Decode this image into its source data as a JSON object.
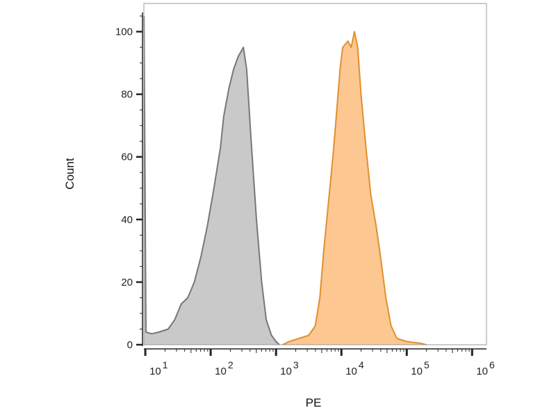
{
  "chart_data": {
    "type": "area",
    "title": "",
    "xlabel": "PE",
    "ylabel": "Count",
    "x_scale": "log",
    "xlim": [
      9.5,
      1660000
    ],
    "ylim": [
      0,
      109
    ],
    "grid": false,
    "x_ticks": [
      {
        "base": "10",
        "exp": "1",
        "value": 10
      },
      {
        "base": "10",
        "exp": "2",
        "value": 100
      },
      {
        "base": "10",
        "exp": "3",
        "value": 1000
      },
      {
        "base": "10",
        "exp": "4",
        "value": 10000
      },
      {
        "base": "10",
        "exp": "5",
        "value": 100000
      },
      {
        "base": "10",
        "exp": "6",
        "value": 1000000
      }
    ],
    "y_ticks": [
      {
        "label": "0",
        "value": 0
      },
      {
        "label": "20",
        "value": 20
      },
      {
        "label": "40",
        "value": 40
      },
      {
        "label": "60",
        "value": 60
      },
      {
        "label": "80",
        "value": 80
      },
      {
        "label": "100",
        "value": 100
      }
    ],
    "series": [
      {
        "color_fill": "#c9c9c9",
        "color_line": "#777777",
        "points_log10x_y": [
          [
            0.98,
            105
          ],
          [
            1.01,
            4
          ],
          [
            1.1,
            3.5
          ],
          [
            1.2,
            4
          ],
          [
            1.35,
            5
          ],
          [
            1.45,
            8
          ],
          [
            1.55,
            13
          ],
          [
            1.65,
            15
          ],
          [
            1.75,
            20
          ],
          [
            1.85,
            28
          ],
          [
            1.95,
            38
          ],
          [
            2.05,
            50
          ],
          [
            2.15,
            63
          ],
          [
            2.2,
            73
          ],
          [
            2.28,
            82
          ],
          [
            2.35,
            88
          ],
          [
            2.42,
            92
          ],
          [
            2.5,
            95
          ],
          [
            2.55,
            88
          ],
          [
            2.62,
            65
          ],
          [
            2.7,
            40
          ],
          [
            2.78,
            20
          ],
          [
            2.85,
            8
          ],
          [
            2.93,
            3
          ],
          [
            3.0,
            1
          ],
          [
            3.05,
            0
          ]
        ]
      },
      {
        "color_fill": "#fcc791",
        "color_line": "#e08f2c",
        "points_log10x_y": [
          [
            3.1,
            0
          ],
          [
            3.2,
            1
          ],
          [
            3.35,
            2
          ],
          [
            3.5,
            3
          ],
          [
            3.6,
            6
          ],
          [
            3.67,
            15
          ],
          [
            3.73,
            30
          ],
          [
            3.8,
            45
          ],
          [
            3.87,
            60
          ],
          [
            3.93,
            75
          ],
          [
            3.98,
            88
          ],
          [
            4.02,
            95
          ],
          [
            4.1,
            97
          ],
          [
            4.15,
            95
          ],
          [
            4.2,
            100
          ],
          [
            4.25,
            95
          ],
          [
            4.3,
            80
          ],
          [
            4.38,
            62
          ],
          [
            4.45,
            48
          ],
          [
            4.53,
            38
          ],
          [
            4.6,
            28
          ],
          [
            4.68,
            15
          ],
          [
            4.76,
            6
          ],
          [
            4.85,
            2
          ],
          [
            5.0,
            1
          ],
          [
            5.2,
            0.5
          ],
          [
            5.3,
            0
          ]
        ]
      }
    ]
  }
}
